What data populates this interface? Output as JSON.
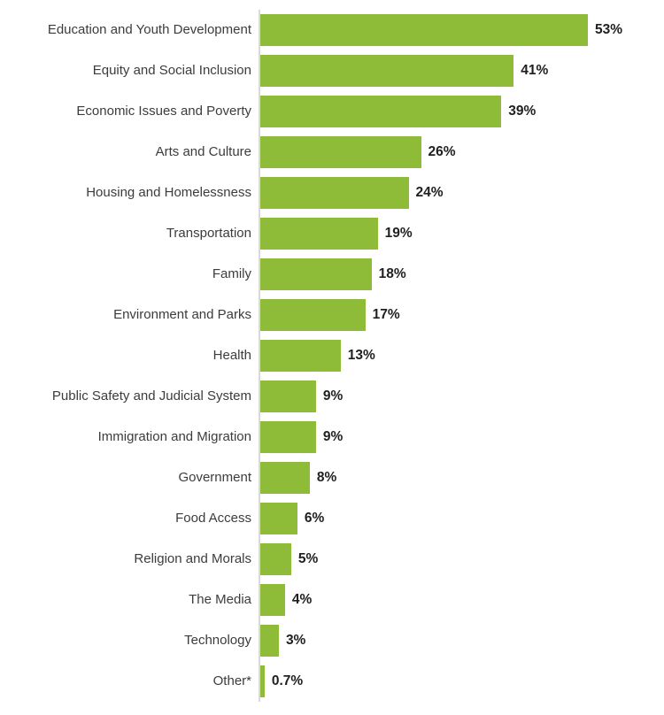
{
  "chart_data": {
    "type": "bar",
    "orientation": "horizontal",
    "title": "",
    "xlabel": "",
    "ylabel": "",
    "grid": false,
    "legend": false,
    "xlim": [
      0,
      56
    ],
    "categories": [
      "Education and Youth Development",
      "Equity and Social Inclusion",
      "Economic Issues and Poverty",
      "Arts and Culture",
      "Housing and Homelessness",
      "Transportation",
      "Family",
      "Environment and Parks",
      "Health",
      "Public Safety and Judicial System",
      "Immigration and Migration",
      "Government",
      "Food Access",
      "Religion and Morals",
      "The Media",
      "Technology",
      "Other*"
    ],
    "values": [
      53,
      41,
      39,
      26,
      24,
      19,
      18,
      17,
      13,
      9,
      9,
      8,
      6,
      5,
      4,
      3,
      0.7
    ],
    "value_labels": [
      "53%",
      "41%",
      "39%",
      "26%",
      "24%",
      "19%",
      "18%",
      "17%",
      "13%",
      "9%",
      "9%",
      "8%",
      "6%",
      "5%",
      "4%",
      "3%",
      "0.7%"
    ],
    "colors": {
      "bar": "#8FBC38",
      "axis_line": "#d9d9d9",
      "category_label": "#3c3c3c",
      "value_label": "#1f1f1f",
      "background": "#ffffff"
    }
  }
}
